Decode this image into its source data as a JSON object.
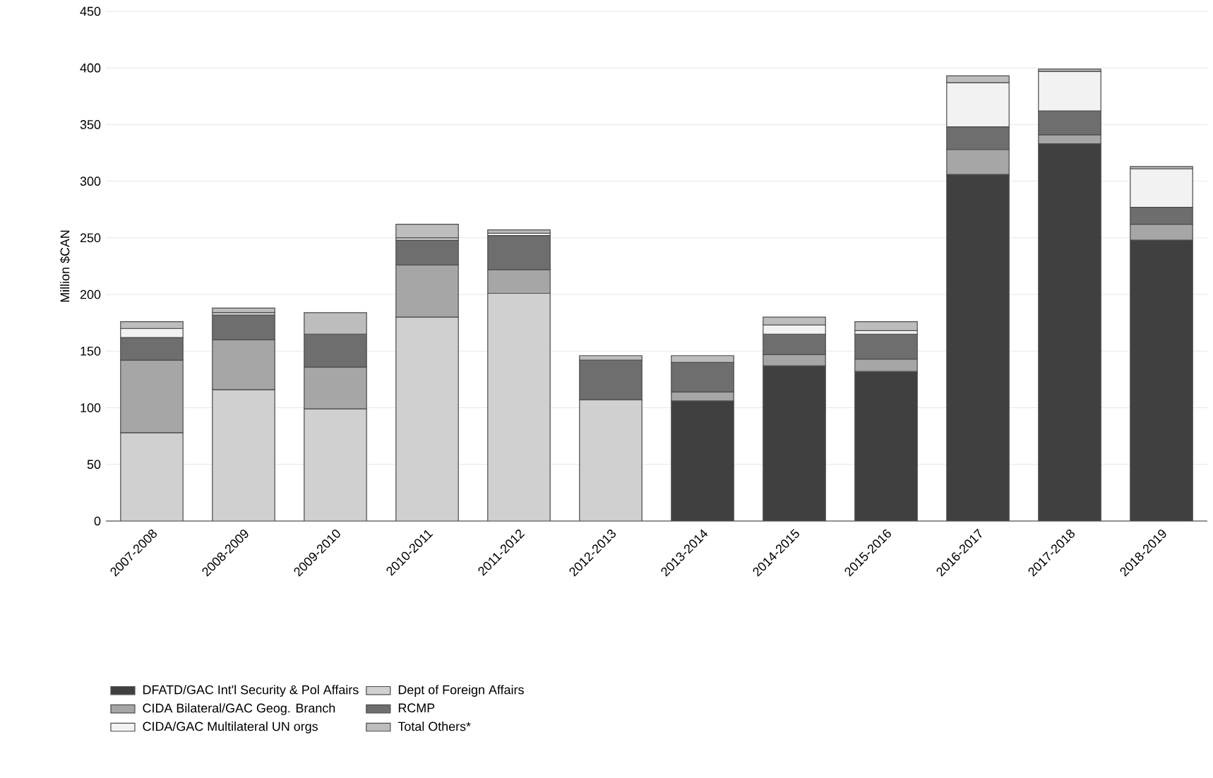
{
  "chart_data": {
    "type": "bar",
    "stacked": true,
    "ylabel": "Million $CAN",
    "categories": [
      "2007-2008",
      "2008-2009",
      "2009-2010",
      "2010-2011",
      "2011-2012",
      "2012-2013",
      "2013-2014",
      "2014-2015",
      "2015-2016",
      "2016-2017",
      "2017-2018",
      "2018-2019"
    ],
    "series": [
      {
        "name": "DFATD/GAC Int'l Security & Pol Affairs",
        "color": "#404040",
        "values": [
          null,
          null,
          null,
          null,
          null,
          null,
          106,
          137,
          132,
          306,
          333,
          248
        ]
      },
      {
        "name": "Dept of Foreign Affairs",
        "color": "#d0d0d0",
        "values": [
          78,
          116,
          99,
          180,
          201,
          107,
          null,
          null,
          null,
          null,
          null,
          null
        ]
      },
      {
        "name": "CIDA Bilateral/GAC Geog. Branch",
        "color": "#a6a6a6",
        "values": [
          64,
          44,
          37,
          46,
          21,
          null,
          8,
          10,
          11,
          22,
          8,
          14
        ]
      },
      {
        "name": "RCMP",
        "color": "#6e6e6e",
        "values": [
          20,
          22,
          29,
          22,
          30,
          35,
          26,
          18,
          22,
          20,
          21,
          15
        ]
      },
      {
        "name": "CIDA/GAC Multilateral UN orgs",
        "color": "#f2f2f2",
        "values": [
          8,
          2,
          null,
          2,
          2,
          null,
          null,
          8,
          3,
          39,
          35,
          34
        ]
      },
      {
        "name": "Total Others*",
        "color": "#bdbdbd",
        "values": [
          6,
          4,
          19,
          12,
          3,
          4,
          6,
          7,
          8,
          6,
          2,
          2
        ]
      }
    ],
    "ylim": [
      0,
      450
    ],
    "yticks": [
      0,
      50,
      100,
      150,
      200,
      250,
      300,
      350,
      400,
      450
    ],
    "grid": "y",
    "legend": "bottom"
  }
}
